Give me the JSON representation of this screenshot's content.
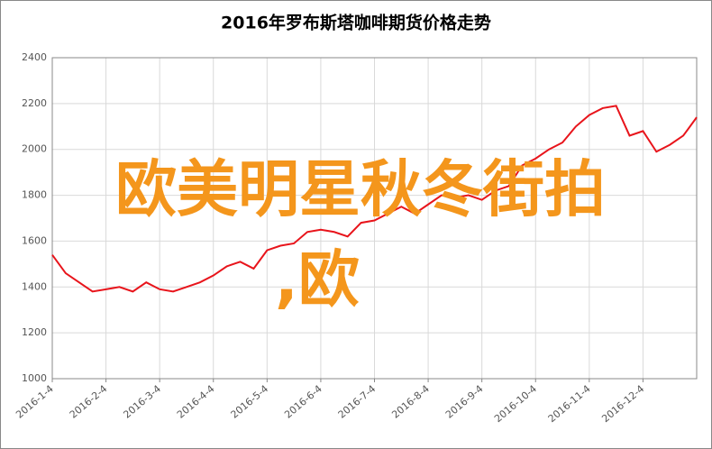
{
  "chart_data": {
    "type": "line",
    "title": "2016年罗布斯塔咖啡期货价格走势",
    "categories": [
      "2016-1-4",
      null,
      null,
      null,
      "2016-2-4",
      null,
      null,
      null,
      "2016-3-4",
      null,
      null,
      null,
      "2016-4-4",
      null,
      null,
      null,
      "2016-5-4",
      null,
      null,
      null,
      "2016-6-4",
      null,
      null,
      null,
      "2016-7-4",
      null,
      null,
      null,
      "2016-8-4",
      null,
      null,
      null,
      "2016-9-4",
      null,
      null,
      null,
      "2016-10-4",
      null,
      null,
      null,
      "2016-11-4",
      null,
      null,
      null,
      "2016-12-4",
      null,
      null,
      null,
      null
    ],
    "series": [
      {
        "color": "#e8141b",
        "values": [
          1540,
          1460,
          1420,
          1380,
          1390,
          1400,
          1380,
          1420,
          1390,
          1380,
          1400,
          1420,
          1450,
          1490,
          1510,
          1480,
          1560,
          1580,
          1590,
          1640,
          1650,
          1640,
          1620,
          1680,
          1690,
          1720,
          1750,
          1720,
          1760,
          1800,
          1790,
          1800,
          1780,
          1820,
          1840,
          1930,
          1960,
          2000,
          2030,
          2100,
          2150,
          2180,
          2190,
          2060,
          2080,
          1990,
          2020,
          2060,
          2140
        ]
      }
    ],
    "ylim": [
      1000,
      2400
    ],
    "yticks": [
      1000,
      1200,
      1400,
      1600,
      1800,
      2000,
      2200,
      2400
    ],
    "grid": true,
    "annotations": [
      "欧美明星秋冬街拍",
      ",欧"
    ],
    "annotation_color": "#f4961c"
  }
}
